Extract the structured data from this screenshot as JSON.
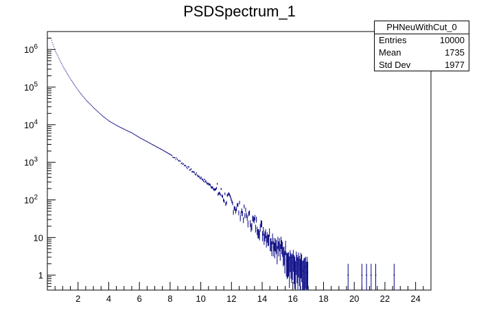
{
  "chart_data": {
    "type": "histogram",
    "title": "PSDSpectrum_1",
    "xlabel": "",
    "ylabel": "",
    "log_y": true,
    "xlim": [
      0,
      25
    ],
    "ylim": [
      0.4,
      3000000
    ],
    "x_ticks": [
      "2",
      "4",
      "6",
      "8",
      "10",
      "12",
      "14",
      "16",
      "18",
      "20",
      "22",
      "24"
    ],
    "y_ticks": [
      {
        "value": 1,
        "label": "1"
      },
      {
        "value": 10,
        "label": "10"
      },
      {
        "value": 100,
        "label": "10",
        "exp": "2"
      },
      {
        "value": 1000,
        "label": "10",
        "exp": "3"
      },
      {
        "value": 10000,
        "label": "10",
        "exp": "4"
      },
      {
        "value": 100000,
        "label": "10",
        "exp": "5"
      },
      {
        "value": 1000000,
        "label": "10",
        "exp": "6"
      }
    ],
    "series": [
      {
        "color": "#000080",
        "points": [
          [
            0.2,
            2000000
          ],
          [
            0.5,
            900000
          ],
          [
            1.0,
            350000
          ],
          [
            1.5,
            160000
          ],
          [
            2.0,
            80000
          ],
          [
            2.5,
            45000
          ],
          [
            3.0,
            28000
          ],
          [
            3.5,
            18000
          ],
          [
            4.0,
            12500
          ],
          [
            4.5,
            9500
          ],
          [
            5.0,
            7500
          ],
          [
            5.5,
            6000
          ],
          [
            6.0,
            4500
          ],
          [
            6.5,
            3500
          ],
          [
            7.0,
            2700
          ],
          [
            7.5,
            2100
          ],
          [
            8.0,
            1600
          ],
          [
            8.5,
            1150
          ],
          [
            9.0,
            800
          ],
          [
            9.5,
            550
          ],
          [
            10.0,
            380
          ],
          [
            10.5,
            260
          ],
          [
            11.0,
            180
          ],
          [
            11.5,
            120
          ],
          [
            12.0,
            80
          ],
          [
            12.5,
            55
          ],
          [
            13.0,
            35
          ],
          [
            13.5,
            24
          ],
          [
            14.0,
            16
          ],
          [
            14.5,
            10
          ],
          [
            15.0,
            6
          ],
          [
            15.5,
            4
          ],
          [
            16.0,
            2
          ],
          [
            16.5,
            1.5
          ],
          [
            17.0,
            1
          ]
        ],
        "isolated_bins": [
          19.6,
          20.5,
          20.8,
          21.1,
          21.4,
          22.6
        ]
      }
    ],
    "stats": {
      "name": "PHNeuWithCut_0",
      "rows": [
        {
          "label": "Entries",
          "value": "10000"
        },
        {
          "label": "Mean",
          "value": "1735"
        },
        {
          "label": "Std Dev",
          "value": "1977"
        }
      ]
    }
  }
}
